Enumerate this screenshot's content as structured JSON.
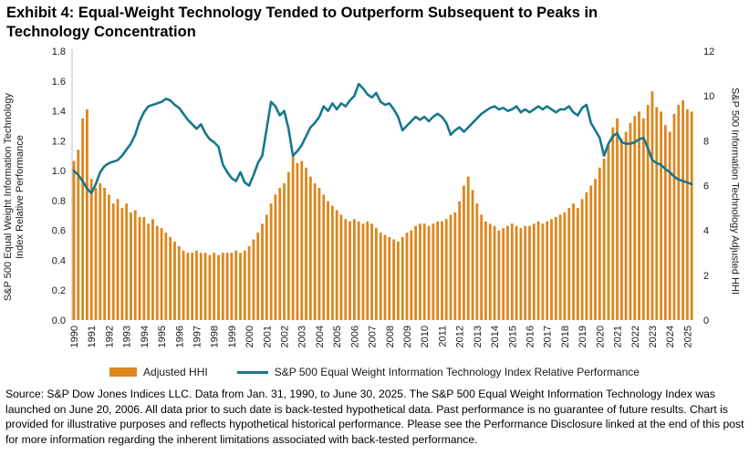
{
  "title": "Exhibit 4: Equal-Weight Technology Tended to Outperform Subsequent to Peaks in Technology Concentration",
  "legend": {
    "hhi_label": "Adjusted HHI",
    "line_label": "S&P 500 Equal Weight Information Technology Index Relative Performance"
  },
  "source_note": "Source: S&P Dow Jones Indices LLC. Data from Jan. 31, 1990, to June 30, 2025. The S&P 500 Equal Weight Information Technology Index was launched on June 20, 2006. All data prior to such date is back-tested hypothetical data. Past performance is no guarantee of future results. Chart is provided for illustrative purposes and reflects hypothetical historical performance. Please see the Performance Disclosure linked at the end of this post for more information regarding the inherent limitations associated with back-tested performance.",
  "colors": {
    "bar": "#DD861C",
    "line": "#16788C",
    "axis_line": "#C0C0C0",
    "tick_text": "#1a1a1a"
  },
  "chart_data": {
    "type": "bar",
    "subtype": "combo bar+line, dual axis",
    "title": "Exhibit 4: Equal-Weight Technology Tended to Outperform Subsequent to Peaks in Technology Concentration",
    "x": {
      "start": 1990.0,
      "step_years": 0.25,
      "count": 142,
      "end": 2025.25
    },
    "x_axis": {
      "tick_labels": [
        "1990",
        "1991",
        "1992",
        "1993",
        "1994",
        "1995",
        "1996",
        "1997",
        "1998",
        "1999",
        "2000",
        "2001",
        "2002",
        "2003",
        "2004",
        "2005",
        "2006",
        "2007",
        "2008",
        "2009",
        "2010",
        "2011",
        "2012",
        "2013",
        "2014",
        "2015",
        "2016",
        "2017",
        "2018",
        "2019",
        "2020",
        "2021",
        "2022",
        "2023",
        "2024",
        "2025"
      ]
    },
    "left_axis": {
      "title": "S&P 500 Equal Weight Information Technology\nIndex Relative Performance",
      "min": 0,
      "max": 1.8,
      "ticks": [
        "0.0",
        "0.2",
        "0.4",
        "0.6",
        "0.8",
        "1.0",
        "1.2",
        "1.4",
        "1.6",
        "1.8"
      ]
    },
    "right_axis": {
      "title": "S&P 500 Information Technology Adjusted HHI",
      "min": 0,
      "max": 12,
      "ticks": [
        "0",
        "2",
        "4",
        "6",
        "8",
        "10",
        "12"
      ]
    },
    "grid": false,
    "legend_position": "bottom",
    "series": [
      {
        "name": "Adjusted HHI",
        "type": "bar",
        "axis": "right",
        "color": "#DD861C",
        "values": [
          7.1,
          7.6,
          9.0,
          9.4,
          6.3,
          5.9,
          6.1,
          5.9,
          5.6,
          5.2,
          5.4,
          5.0,
          5.2,
          4.8,
          4.9,
          4.6,
          4.6,
          4.3,
          4.5,
          4.2,
          4.1,
          3.9,
          3.7,
          3.5,
          3.3,
          3.1,
          3.0,
          3.0,
          3.1,
          3.0,
          3.0,
          2.9,
          3.0,
          2.9,
          3.0,
          3.0,
          3.0,
          3.1,
          3.0,
          3.1,
          3.3,
          3.6,
          3.9,
          4.3,
          4.7,
          5.2,
          5.6,
          5.9,
          6.1,
          6.6,
          7.3,
          7.0,
          7.1,
          6.8,
          6.4,
          6.1,
          5.9,
          5.6,
          5.3,
          5.1,
          4.9,
          4.7,
          4.5,
          4.4,
          4.5,
          4.4,
          4.3,
          4.4,
          4.3,
          4.1,
          3.9,
          3.8,
          3.7,
          3.6,
          3.5,
          3.7,
          3.9,
          4.0,
          4.2,
          4.3,
          4.3,
          4.2,
          4.3,
          4.4,
          4.4,
          4.5,
          4.7,
          4.8,
          5.3,
          6.0,
          6.4,
          5.8,
          5.2,
          4.7,
          4.4,
          4.3,
          4.2,
          4.0,
          4.1,
          4.2,
          4.3,
          4.2,
          4.1,
          4.2,
          4.2,
          4.3,
          4.4,
          4.3,
          4.4,
          4.5,
          4.6,
          4.7,
          4.8,
          5.0,
          5.2,
          5.0,
          5.4,
          5.7,
          6.0,
          6.3,
          6.8,
          7.2,
          7.8,
          8.6,
          9.0,
          8.1,
          8.4,
          8.8,
          9.1,
          9.3,
          9.0,
          9.6,
          10.2,
          9.5,
          9.3,
          8.7,
          8.4,
          9.2,
          9.6,
          9.8,
          9.4,
          9.3
        ]
      },
      {
        "name": "S&P 500 Equal Weight Information Technology Index Relative Performance",
        "type": "line",
        "axis": "left",
        "color": "#16788C",
        "values": [
          1.0,
          0.97,
          0.93,
          0.88,
          0.85,
          0.91,
          0.99,
          1.03,
          1.05,
          1.06,
          1.07,
          1.1,
          1.14,
          1.18,
          1.24,
          1.33,
          1.39,
          1.43,
          1.44,
          1.45,
          1.46,
          1.48,
          1.47,
          1.44,
          1.42,
          1.38,
          1.34,
          1.31,
          1.28,
          1.31,
          1.25,
          1.21,
          1.19,
          1.16,
          1.04,
          0.99,
          0.95,
          0.93,
          0.99,
          0.92,
          0.9,
          0.97,
          1.05,
          1.1,
          1.28,
          1.46,
          1.43,
          1.37,
          1.4,
          1.28,
          1.1,
          1.13,
          1.17,
          1.23,
          1.29,
          1.32,
          1.36,
          1.43,
          1.4,
          1.45,
          1.41,
          1.45,
          1.43,
          1.47,
          1.5,
          1.58,
          1.55,
          1.51,
          1.49,
          1.52,
          1.46,
          1.44,
          1.45,
          1.41,
          1.36,
          1.27,
          1.3,
          1.33,
          1.36,
          1.34,
          1.36,
          1.33,
          1.36,
          1.38,
          1.36,
          1.32,
          1.24,
          1.27,
          1.29,
          1.26,
          1.29,
          1.32,
          1.35,
          1.38,
          1.4,
          1.42,
          1.43,
          1.41,
          1.42,
          1.4,
          1.41,
          1.43,
          1.39,
          1.41,
          1.39,
          1.41,
          1.43,
          1.41,
          1.43,
          1.41,
          1.39,
          1.41,
          1.41,
          1.43,
          1.39,
          1.37,
          1.42,
          1.44,
          1.32,
          1.27,
          1.22,
          1.1,
          1.18,
          1.23,
          1.25,
          1.19,
          1.18,
          1.18,
          1.19,
          1.21,
          1.22,
          1.15,
          1.07,
          1.05,
          1.04,
          1.01,
          0.99,
          0.96,
          0.94,
          0.93,
          0.92,
          0.91
        ]
      }
    ]
  }
}
